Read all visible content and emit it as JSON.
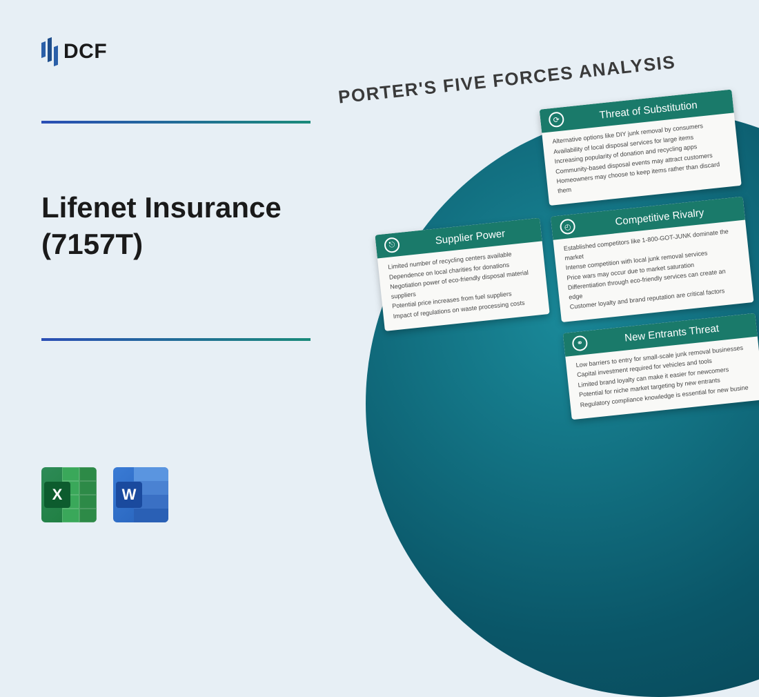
{
  "logo": {
    "text": "DCF"
  },
  "title": "Lifenet Insurance (7157T)",
  "analysis_heading": "PORTER'S FIVE FORCES ANALYSIS",
  "colors": {
    "background": "#e7eff5",
    "divider_gradient_start": "#2a4eb5",
    "divider_gradient_end": "#1a8a7a",
    "circle_gradient_inner": "#1a8a9a",
    "circle_gradient_outer": "#074050",
    "card_header": "#1a7a6a",
    "card_body_bg": "#f9f9f7",
    "excel": "#1a7a3a",
    "word": "#2560b8"
  },
  "file_icons": {
    "excel_letter": "X",
    "word_letter": "W"
  },
  "cards": {
    "substitution": {
      "title": "Threat of Substitution",
      "lines": [
        "Alternative options like DIY junk removal by consumers",
        "Availability of local disposal services for large items",
        "Increasing popularity of donation and recycling apps",
        "Community-based disposal events may attract customers",
        "Homeowners may choose to keep items rather than discard them"
      ]
    },
    "supplier": {
      "title": "Supplier Power",
      "lines": [
        "Limited number of recycling centers available",
        "Dependence on local charities for donations",
        "Negotiation power of eco-friendly disposal material suppliers",
        "Potential price increases from fuel suppliers",
        "Impact of regulations on waste processing costs"
      ]
    },
    "rivalry": {
      "title": "Competitive Rivalry",
      "lines": [
        "Established competitors like 1-800-GOT-JUNK dominate the market",
        "Intense competition with local junk removal services",
        "Price wars may occur due to market saturation",
        "Differentiation through eco-friendly services can create an edge",
        "Customer loyalty and brand reputation are critical factors"
      ]
    },
    "entrants": {
      "title": "New Entrants Threat",
      "lines": [
        "Low barriers to entry for small-scale junk removal businesses",
        "Capital investment required for vehicles and tools",
        "Limited brand loyalty can make it easier for newcomers",
        "Potential for niche market targeting by new entrants",
        "Regulatory compliance knowledge is essential for new busine"
      ]
    }
  }
}
